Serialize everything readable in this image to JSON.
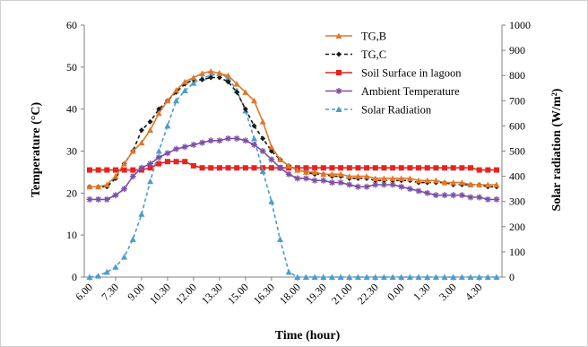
{
  "chart_data": {
    "type": "line",
    "xlabel": "Time (hour)",
    "ylabel_left": "Temperature (°C)",
    "ylabel_right": "Solar radiation (W/m²)",
    "ylim_left": [
      0,
      60
    ],
    "ylim_right": [
      0,
      1000
    ],
    "yticks_left": [
      "0",
      "10",
      "20",
      "30",
      "40",
      "50",
      "60"
    ],
    "yticks_right": [
      "0",
      "100",
      "200",
      "300",
      "400",
      "500",
      "600",
      "700",
      "800",
      "900",
      "1000"
    ],
    "x_tick_labels": [
      "6.00",
      "7.30",
      "9.00",
      "10.30",
      "12.00",
      "13.30",
      "15.00",
      "16.30",
      "18.00",
      "19.30",
      "21.00",
      "22.30",
      "0.00",
      "1.30",
      "3.00",
      "4.30"
    ],
    "x": [
      "6.00",
      "6.30",
      "7.00",
      "7.30",
      "8.00",
      "8.30",
      "9.00",
      "9.30",
      "10.00",
      "10.30",
      "11.00",
      "11.30",
      "12.00",
      "12.30",
      "13.00",
      "13.30",
      "14.00",
      "14.30",
      "15.00",
      "15.30",
      "16.00",
      "16.30",
      "17.00",
      "17.30",
      "18.00",
      "18.30",
      "19.00",
      "19.30",
      "20.00",
      "20.30",
      "21.00",
      "21.30",
      "22.00",
      "22.30",
      "23.00",
      "23.30",
      "0.00",
      "0.30",
      "1.00",
      "1.30",
      "2.00",
      "2.30",
      "3.00",
      "3.30",
      "4.00",
      "4.30",
      "5.00",
      "5.30"
    ],
    "legend_position": "top-right",
    "grid": false,
    "series": [
      {
        "name": "TG,B",
        "axis": "left",
        "color": "#E0782A",
        "marker": "triangle",
        "dashed": false,
        "values": [
          21.5,
          21.5,
          22,
          24,
          27,
          30,
          32,
          35,
          39,
          42,
          44.5,
          46.5,
          47.5,
          48.5,
          49,
          48.5,
          48,
          46,
          44,
          42,
          37,
          31,
          28,
          26.5,
          25.5,
          25,
          25,
          24.5,
          24.5,
          24.5,
          24,
          24,
          24,
          23.5,
          23.5,
          23.5,
          23.5,
          23.5,
          23,
          23,
          23,
          22.5,
          22.5,
          22.5,
          22,
          22,
          22,
          22
        ]
      },
      {
        "name": "TG,C",
        "axis": "left",
        "color": "#1A1A1A",
        "marker": "diamond",
        "dashed": true,
        "values": [
          21.5,
          21.5,
          21.5,
          23.5,
          27,
          30,
          35,
          37,
          40,
          42,
          44,
          46,
          47,
          47,
          47.5,
          47.5,
          46.5,
          44,
          40,
          36,
          33,
          30,
          28,
          26.5,
          25.5,
          25,
          24.5,
          24.5,
          24,
          24,
          23.5,
          23.5,
          23.5,
          23,
          23,
          23,
          23,
          23,
          22.5,
          22.5,
          22.5,
          22.5,
          22,
          22,
          22,
          22,
          21.5,
          21.5
        ]
      },
      {
        "name": "Soil Surface in lagoon",
        "axis": "left",
        "color": "#E8221E",
        "marker": "square",
        "dashed": false,
        "values": [
          25.5,
          25.5,
          25.5,
          25.5,
          25.5,
          25.5,
          25.5,
          26,
          27,
          27.5,
          27.5,
          27.5,
          26.5,
          26,
          26,
          26,
          26,
          26,
          26,
          26,
          26,
          26,
          26,
          26,
          26,
          26,
          26,
          26,
          26,
          26,
          26,
          26,
          26,
          26,
          26,
          26,
          26,
          26,
          26,
          26,
          26,
          26,
          26,
          26,
          26,
          25.5,
          25.5,
          25.5
        ]
      },
      {
        "name": "Ambient Temperature",
        "axis": "left",
        "color": "#7B4FA5",
        "marker": "star",
        "dashed": false,
        "values": [
          18.5,
          18.5,
          18.5,
          19.5,
          21,
          24,
          26,
          27,
          28.5,
          29.5,
          30.5,
          31,
          31.5,
          32,
          32.5,
          32.5,
          33,
          33,
          32.5,
          31.5,
          30,
          28,
          26,
          24.5,
          23.5,
          23.5,
          23,
          23,
          22.5,
          22.5,
          22,
          21.5,
          21.5,
          22,
          22,
          22,
          21.5,
          21,
          20.5,
          20,
          19.5,
          19.5,
          19.5,
          19.5,
          19,
          19,
          18.5,
          18.5
        ]
      },
      {
        "name": "Solar Radiation",
        "axis": "right",
        "color": "#4A9BD0",
        "marker": "triangle",
        "dashed": true,
        "values": [
          0,
          5,
          20,
          40,
          80,
          150,
          250,
          380,
          500,
          600,
          700,
          740,
          770,
          790,
          800,
          810,
          790,
          740,
          660,
          550,
          420,
          300,
          150,
          20,
          0,
          0,
          0,
          0,
          0,
          0,
          0,
          0,
          0,
          0,
          0,
          0,
          0,
          0,
          0,
          0,
          0,
          0,
          0,
          0,
          0,
          0,
          0,
          0
        ]
      }
    ]
  }
}
